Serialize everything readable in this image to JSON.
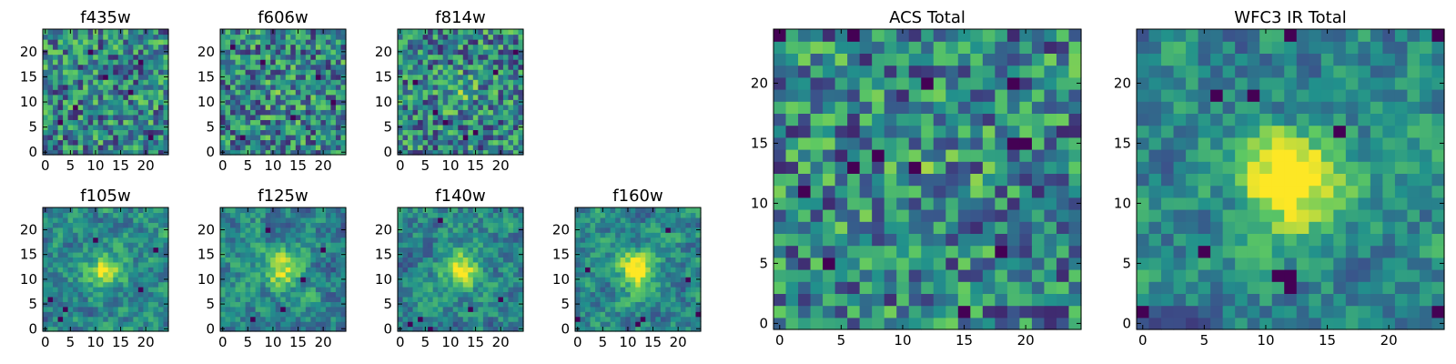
{
  "figure": {
    "colormap": [
      "#440154",
      "#3b528b",
      "#21918c",
      "#5ec962",
      "#fde725"
    ],
    "frame_color": "#000000"
  },
  "chart_data": [
    {
      "type": "heatmap",
      "title": "f435w",
      "grid": [
        25,
        25
      ],
      "xlim": [
        -0.5,
        24.5
      ],
      "ylim": [
        -0.5,
        24.5
      ],
      "xticks": [
        0,
        5,
        10,
        15,
        20
      ],
      "yticks": [
        0,
        5,
        10,
        15,
        20
      ],
      "origin": "lower",
      "pattern": "noise",
      "seed": 11,
      "source_strength": 0.0,
      "outliers": [
        [
          3,
          6
        ],
        [
          17,
          12
        ],
        [
          9,
          20
        ],
        [
          21,
          3
        ],
        [
          12,
          15
        ],
        [
          6,
          9
        ],
        [
          19,
          18
        ]
      ]
    },
    {
      "type": "heatmap",
      "title": "f606w",
      "grid": [
        25,
        25
      ],
      "xlim": [
        -0.5,
        24.5
      ],
      "ylim": [
        -0.5,
        24.5
      ],
      "xticks": [
        0,
        5,
        10,
        15,
        20
      ],
      "yticks": [
        0,
        5,
        10,
        15,
        20
      ],
      "origin": "lower",
      "pattern": "noise",
      "seed": 23,
      "source_strength": 0.1,
      "outliers": [
        [
          19,
          15
        ],
        [
          4,
          3
        ],
        [
          14,
          7
        ],
        [
          8,
          18
        ],
        [
          22,
          10
        ],
        [
          2,
          21
        ]
      ]
    },
    {
      "type": "heatmap",
      "title": "f814w",
      "grid": [
        25,
        25
      ],
      "xlim": [
        -0.5,
        24.5
      ],
      "ylim": [
        -0.5,
        24.5
      ],
      "xticks": [
        0,
        5,
        10,
        15,
        20
      ],
      "yticks": [
        0,
        5,
        10,
        15,
        20
      ],
      "origin": "lower",
      "pattern": "noise",
      "seed": 37,
      "source_strength": 0.15,
      "outliers": [
        [
          7,
          8
        ],
        [
          15,
          4
        ],
        [
          19,
          16
        ],
        [
          3,
          14
        ],
        [
          13,
          3
        ],
        [
          23,
          20
        ],
        [
          9,
          6
        ]
      ]
    },
    {
      "type": "heatmap",
      "title": "f105w",
      "grid": [
        25,
        25
      ],
      "xlim": [
        -0.5,
        24.5
      ],
      "ylim": [
        -0.5,
        24.5
      ],
      "xticks": [
        0,
        5,
        10,
        15,
        20
      ],
      "yticks": [
        0,
        5,
        10,
        15,
        20
      ],
      "origin": "lower",
      "pattern": "smooth",
      "seed": 41,
      "source_strength": 0.45,
      "outliers": [
        [
          4,
          4
        ],
        [
          3,
          2
        ],
        [
          19,
          8
        ],
        [
          22,
          16
        ],
        [
          10,
          18
        ],
        [
          1,
          6
        ]
      ]
    },
    {
      "type": "heatmap",
      "title": "f125w",
      "grid": [
        25,
        25
      ],
      "xlim": [
        -0.5,
        24.5
      ],
      "ylim": [
        -0.5,
        24.5
      ],
      "xticks": [
        0,
        5,
        10,
        15,
        20
      ],
      "yticks": [
        0,
        5,
        10,
        15,
        20
      ],
      "origin": "lower",
      "pattern": "smooth",
      "seed": 53,
      "source_strength": 0.45,
      "outliers": [
        [
          9,
          20
        ],
        [
          12,
          4
        ],
        [
          20,
          16
        ],
        [
          6,
          2
        ],
        [
          16,
          10
        ]
      ]
    },
    {
      "type": "heatmap",
      "title": "f140w",
      "grid": [
        25,
        25
      ],
      "xlim": [
        -0.5,
        24.5
      ],
      "ylim": [
        -0.5,
        24.5
      ],
      "xticks": [
        0,
        5,
        10,
        15,
        20
      ],
      "yticks": [
        0,
        5,
        10,
        15,
        20
      ],
      "origin": "lower",
      "pattern": "smooth",
      "seed": 67,
      "source_strength": 0.5,
      "outliers": [
        [
          2,
          1
        ],
        [
          4,
          2
        ],
        [
          6,
          0
        ],
        [
          14,
          4
        ],
        [
          8,
          22
        ],
        [
          20,
          6
        ]
      ]
    },
    {
      "type": "heatmap",
      "title": "f160w",
      "grid": [
        25,
        25
      ],
      "xlim": [
        -0.5,
        24.5
      ],
      "ylim": [
        -0.5,
        24.5
      ],
      "xticks": [
        0,
        5,
        10,
        15,
        20
      ],
      "yticks": [
        0,
        5,
        10,
        15,
        20
      ],
      "origin": "lower",
      "pattern": "smooth",
      "seed": 71,
      "source_strength": 0.6,
      "outliers": [
        [
          12,
          1
        ],
        [
          13,
          2
        ],
        [
          0,
          2
        ],
        [
          22,
          10
        ],
        [
          2,
          12
        ],
        [
          18,
          20
        ],
        [
          24,
          3
        ]
      ]
    },
    {
      "type": "heatmap",
      "title": "ACS Total",
      "grid": [
        25,
        25
      ],
      "xlim": [
        -0.5,
        24.5
      ],
      "ylim": [
        -0.5,
        24.5
      ],
      "xticks": [
        0,
        5,
        10,
        15,
        20
      ],
      "yticks": [
        0,
        5,
        10,
        15,
        20
      ],
      "origin": "lower",
      "pattern": "noise",
      "seed": 83,
      "source_strength": 0.1,
      "outliers": [
        [
          0,
          24
        ],
        [
          6,
          24
        ],
        [
          2,
          11
        ],
        [
          19,
          15
        ],
        [
          20,
          15
        ],
        [
          6,
          13
        ],
        [
          8,
          14
        ],
        [
          18,
          6
        ],
        [
          12,
          20
        ],
        [
          19,
          20
        ],
        [
          11,
          13
        ],
        [
          4,
          5
        ],
        [
          15,
          1
        ]
      ]
    },
    {
      "type": "heatmap",
      "title": "WFC3 IR Total",
      "grid": [
        25,
        25
      ],
      "xlim": [
        -0.5,
        24.5
      ],
      "ylim": [
        -0.5,
        24.5
      ],
      "xticks": [
        0,
        5,
        10,
        15,
        20
      ],
      "yticks": [
        0,
        5,
        10,
        15,
        20
      ],
      "origin": "lower",
      "pattern": "smooth",
      "seed": 97,
      "source_strength": 0.75,
      "outliers": [
        [
          6,
          19
        ],
        [
          9,
          19
        ],
        [
          12,
          4
        ],
        [
          11,
          4
        ],
        [
          12,
          3
        ],
        [
          0,
          1
        ],
        [
          24,
          1
        ],
        [
          5,
          6
        ],
        [
          16,
          16
        ],
        [
          24,
          24
        ],
        [
          12,
          24
        ]
      ]
    }
  ]
}
